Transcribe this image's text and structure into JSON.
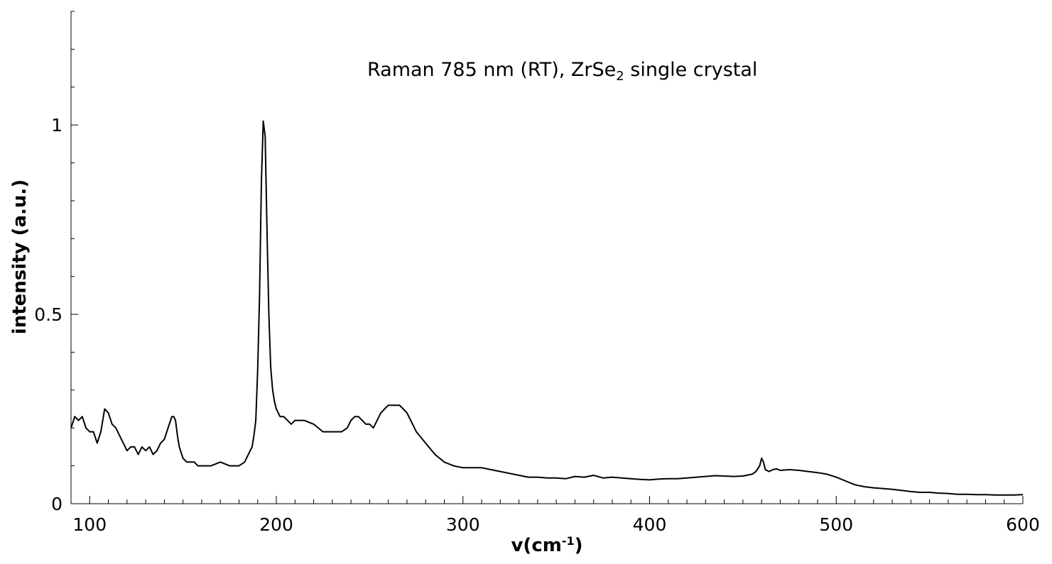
{
  "chart_data": {
    "type": "line",
    "title_main": "Raman 785 nm (RT), ZrSe",
    "title_sub": "2",
    "title_tail": " single crystal",
    "xlabel_main": "v(cm",
    "xlabel_sup": "-1",
    "xlabel_tail": ")",
    "ylabel": "intensity (a.u.)",
    "xlim": [
      90,
      600
    ],
    "ylim": [
      0,
      1.3
    ],
    "xticks": [
      100,
      200,
      300,
      400,
      500,
      600
    ],
    "xtick_labels": [
      "100",
      "200",
      "300",
      "400",
      "500",
      "600"
    ],
    "yticks": [
      0,
      0.5,
      1
    ],
    "ytick_labels": [
      "0",
      "0.5",
      "1"
    ],
    "x_minor_step": 10,
    "y_minor_step": 0.1,
    "grid": false,
    "line_color": "#000000",
    "series": [
      {
        "x": [
          90,
          92,
          94,
          96,
          98,
          100,
          102,
          104,
          106,
          108,
          110,
          112,
          114,
          116,
          118,
          120,
          122,
          124,
          126,
          128,
          130,
          132,
          134,
          136,
          138,
          140,
          142,
          144,
          145,
          146,
          147,
          148,
          150,
          152,
          154,
          156,
          158,
          160,
          162,
          165,
          170,
          175,
          180,
          183,
          185,
          187,
          188,
          189,
          190,
          191,
          192,
          193,
          194,
          195,
          196,
          197,
          198,
          199,
          200,
          202,
          204,
          206,
          208,
          210,
          212,
          215,
          220,
          225,
          228,
          230,
          235,
          238,
          240,
          242,
          244,
          246,
          248,
          250,
          252,
          254,
          256,
          258,
          260,
          262,
          264,
          266,
          268,
          270,
          272,
          275,
          280,
          285,
          290,
          295,
          300,
          305,
          310,
          315,
          320,
          325,
          330,
          335,
          340,
          345,
          350,
          355,
          360,
          365,
          370,
          375,
          380,
          385,
          390,
          395,
          400,
          405,
          410,
          415,
          420,
          425,
          430,
          435,
          440,
          445,
          450,
          455,
          457,
          459,
          460,
          461,
          462,
          464,
          466,
          468,
          470,
          475,
          480,
          485,
          490,
          495,
          500,
          505,
          510,
          515,
          520,
          525,
          530,
          535,
          540,
          545,
          550,
          555,
          560,
          565,
          570,
          575,
          580,
          585,
          590,
          595,
          600
        ],
        "y": [
          0.2,
          0.23,
          0.22,
          0.23,
          0.2,
          0.19,
          0.19,
          0.16,
          0.19,
          0.25,
          0.24,
          0.21,
          0.2,
          0.18,
          0.16,
          0.14,
          0.15,
          0.15,
          0.13,
          0.15,
          0.14,
          0.15,
          0.13,
          0.14,
          0.16,
          0.17,
          0.2,
          0.23,
          0.23,
          0.22,
          0.18,
          0.15,
          0.12,
          0.11,
          0.11,
          0.11,
          0.1,
          0.1,
          0.1,
          0.1,
          0.11,
          0.1,
          0.1,
          0.11,
          0.13,
          0.15,
          0.18,
          0.22,
          0.35,
          0.55,
          0.85,
          1.01,
          0.97,
          0.72,
          0.5,
          0.36,
          0.3,
          0.27,
          0.25,
          0.23,
          0.23,
          0.22,
          0.21,
          0.22,
          0.22,
          0.22,
          0.21,
          0.19,
          0.19,
          0.19,
          0.19,
          0.2,
          0.22,
          0.23,
          0.23,
          0.22,
          0.21,
          0.21,
          0.2,
          0.22,
          0.24,
          0.25,
          0.26,
          0.26,
          0.26,
          0.26,
          0.25,
          0.24,
          0.22,
          0.19,
          0.16,
          0.13,
          0.11,
          0.1,
          0.095,
          0.095,
          0.095,
          0.09,
          0.085,
          0.08,
          0.075,
          0.07,
          0.07,
          0.068,
          0.068,
          0.066,
          0.072,
          0.07,
          0.075,
          0.068,
          0.07,
          0.068,
          0.066,
          0.064,
          0.063,
          0.065,
          0.066,
          0.066,
          0.068,
          0.07,
          0.072,
          0.074,
          0.073,
          0.072,
          0.073,
          0.078,
          0.085,
          0.1,
          0.12,
          0.11,
          0.09,
          0.085,
          0.09,
          0.092,
          0.088,
          0.09,
          0.088,
          0.085,
          0.082,
          0.078,
          0.07,
          0.06,
          0.05,
          0.045,
          0.042,
          0.04,
          0.038,
          0.035,
          0.032,
          0.03,
          0.03,
          0.028,
          0.027,
          0.025,
          0.025,
          0.024,
          0.024,
          0.023,
          0.023,
          0.023,
          0.024
        ]
      }
    ]
  }
}
